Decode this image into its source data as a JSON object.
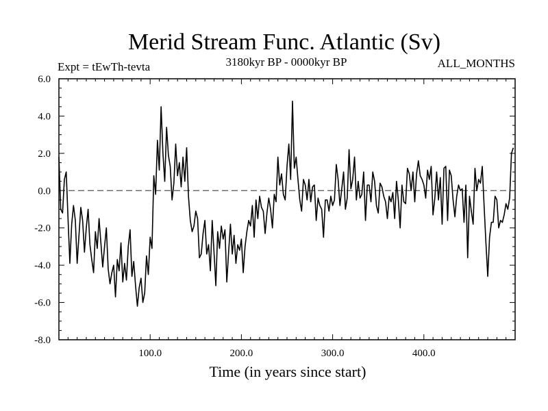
{
  "chart_data": {
    "type": "line",
    "title": "Merid Stream Func. Atlantic (Sv)",
    "subtitle_left": "Expt = tEwTh-tevta",
    "subtitle_center": "3180kyr BP - 0000kyr BP",
    "subtitle_right": "ALL_MONTHS",
    "xlabel": "Time (in years since start)",
    "ylabel": "",
    "xlim": [
      0,
      500
    ],
    "ylim": [
      -8.0,
      6.0
    ],
    "xticks": [
      100,
      200,
      300,
      400
    ],
    "xtick_labels": [
      "100.0",
      "200.0",
      "300.0",
      "400.0"
    ],
    "yticks": [
      -8,
      -6,
      -4,
      -2,
      0,
      2,
      4,
      6
    ],
    "ytick_labels": [
      "-8.0",
      "-6.0",
      "-4.0",
      "-2.0",
      "0.0",
      "2.0",
      "4.0",
      "6.0"
    ],
    "reference_line": {
      "y": 0.0,
      "style": "dashed"
    },
    "series": [
      {
        "name": "Merid Stream Func. Atlantic",
        "x_start": 0,
        "x_step": 2,
        "values": [
          1.8,
          -1.0,
          -1.2,
          0.6,
          1.0,
          -1.5,
          -3.9,
          -1.8,
          -0.8,
          -1.6,
          -3.9,
          -2.4,
          -0.9,
          -1.6,
          -3.3,
          -2.0,
          -1.0,
          -2.9,
          -3.7,
          -4.4,
          -2.2,
          -3.1,
          -1.5,
          -2.8,
          -4.1,
          -3.0,
          -2.0,
          -4.2,
          -5.0,
          -4.4,
          -4.0,
          -5.7,
          -3.7,
          -4.3,
          -2.8,
          -4.9,
          -3.9,
          -4.8,
          -3.0,
          -2.1,
          -4.6,
          -3.8,
          -5.1,
          -6.2,
          -5.2,
          -4.7,
          -6.0,
          -5.5,
          -3.5,
          -4.5,
          -2.5,
          -3.1,
          0.8,
          -0.2,
          2.7,
          1.1,
          4.5,
          2.0,
          0.5,
          3.4,
          1.9,
          1.3,
          -0.5,
          0.4,
          2.5,
          0.8,
          1.5,
          0.2,
          1.8,
          0.5,
          2.3,
          -0.3,
          -1.6,
          -2.2,
          -1.9,
          -1.1,
          -1.5,
          -3.6,
          -3.4,
          -2.3,
          -1.6,
          -3.4,
          -2.9,
          -4.3,
          -1.6,
          -3.3,
          -5.1,
          -2.2,
          -3.1,
          -1.9,
          -2.6,
          -2.1,
          -4.9,
          -3.3,
          -1.8,
          -3.4,
          -2.4,
          -3.9,
          -2.9,
          -3.2,
          -2.6,
          -4.4,
          -3.0,
          -2.2,
          -1.6,
          -1.9,
          -0.8,
          -2.5,
          -0.5,
          -1.5,
          -0.3,
          -0.9,
          -1.1,
          -2.3,
          -1.2,
          -0.4,
          -1.0,
          -2.0,
          -0.2,
          -0.6,
          1.8,
          0.3,
          0.9,
          -0.2,
          -0.5,
          1.3,
          2.5,
          0.6,
          4.8,
          1.2,
          1.8,
          0.6,
          -0.5,
          -1.1,
          0.6,
          0.3,
          -0.5,
          0.6,
          -0.6,
          0.2,
          0.3,
          -1.6,
          -0.4,
          -0.8,
          -1.0,
          -2.5,
          -0.5,
          -0.5,
          -1.1,
          -0.3,
          -0.8,
          -0.5,
          1.4,
          0.6,
          -0.8,
          0.1,
          1.0,
          -1.0,
          -0.4,
          2.2,
          0.1,
          0.6,
          1.8,
          -0.5,
          0.5,
          -0.4,
          -0.2,
          1.0,
          -1.6,
          0.3,
          0.3,
          -0.6,
          1.0,
          0.5,
          -0.8,
          -1.2,
          0.4,
          0.2,
          -0.3,
          -0.6,
          -1.5,
          -0.3,
          -0.6,
          -0.1,
          -1.5,
          0.5,
          -0.5,
          -2.0,
          0.3,
          -0.6,
          -0.7,
          1.2,
          0.9,
          0.0,
          1.0,
          -0.6,
          0.9,
          1.6,
          0.8,
          0.6,
          0.3,
          -0.4,
          1.1,
          0.6,
          1.3,
          -1.3,
          -0.4,
          1.0,
          -0.5,
          0.7,
          -1.8,
          1.2,
          1.3,
          -1.6,
          1.1,
          0.8,
          -0.5,
          -1.4,
          -0.3,
          0.3,
          0.0,
          0.1,
          -1.7,
          0.3,
          -3.6,
          -0.3,
          -1.1,
          -1.8,
          1.2,
          0.0,
          0.6,
          0.4,
          1.3,
          -0.8,
          -2.8,
          -4.6,
          -2.5,
          -1.7,
          -1.7,
          -0.3,
          -0.5,
          -2.0,
          -1.6,
          -1.7,
          -1.3,
          -0.7,
          -1.0,
          -0.4,
          2.0,
          2.3
        ]
      }
    ]
  }
}
